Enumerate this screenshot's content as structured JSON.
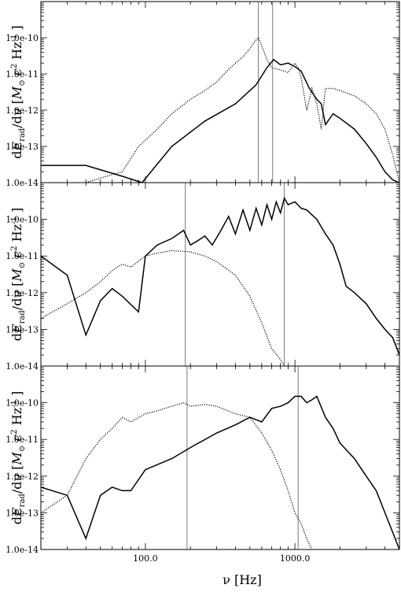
{
  "chart_data": [
    {
      "type": "line",
      "panel": "top",
      "xscale": "log",
      "yscale": "log",
      "xlim": [
        20,
        5000
      ],
      "ylim": [
        1e-14,
        1e-09
      ],
      "ylabel": "dE_rad/dν [M⊙ c² Hz⁻¹]",
      "yticks": [
        "1.0e-14",
        "1.0e-13",
        "1.0e-12",
        "1.0e-11",
        "1.0e-10"
      ],
      "vlines": [
        570,
        710
      ],
      "series": [
        {
          "style": "solid",
          "x": [
            20,
            40,
            70,
            95,
            150,
            250,
            400,
            550,
            650,
            720,
            800,
            900,
            1000,
            1100,
            1250,
            1400,
            1500,
            1600,
            1800,
            2000,
            2500,
            3000,
            3500,
            4000,
            4500,
            5000
          ],
          "y": [
            3e-14,
            3e-14,
            1.5e-14,
            1e-14,
            1e-13,
            5e-13,
            1.5e-12,
            5e-12,
            1.5e-11,
            2.5e-11,
            1.8e-11,
            2e-11,
            1.6e-11,
            1.2e-11,
            4e-12,
            2e-12,
            1.5e-12,
            4e-13,
            8e-13,
            6e-13,
            3e-13,
            1.2e-13,
            5e-14,
            2e-14,
            1.2e-14,
            1e-14
          ]
        },
        {
          "style": "dotted",
          "x": [
            40,
            55,
            70,
            90,
            120,
            150,
            200,
            250,
            300,
            350,
            400,
            450,
            500,
            540,
            570,
            600,
            650,
            700,
            800,
            900,
            1000,
            1050,
            1100,
            1200,
            1300,
            1400,
            1500,
            1600,
            1800,
            2000,
            2500,
            3000,
            3500,
            4000,
            4500,
            5000
          ],
          "y": [
            1e-14,
            1.5e-14,
            2e-14,
            1e-13,
            3e-13,
            8e-13,
            2e-12,
            3.5e-12,
            6e-12,
            1.2e-11,
            2e-11,
            3e-11,
            5e-11,
            8e-11,
            1e-10,
            6e-11,
            2.5e-11,
            1.5e-11,
            1.3e-11,
            1.1e-11,
            2e-11,
            1.5e-11,
            8e-12,
            1e-12,
            4e-12,
            1.5e-12,
            3e-13,
            4e-12,
            4e-12,
            3.5e-12,
            2.5e-12,
            1.5e-12,
            8e-13,
            3e-13,
            6e-14,
            1e-14
          ]
        }
      ]
    },
    {
      "type": "line",
      "panel": "middle",
      "xscale": "log",
      "yscale": "log",
      "xlim": [
        20,
        5000
      ],
      "ylim": [
        1e-14,
        1e-09
      ],
      "ylabel": "dE_rad/dν [M⊙ c² Hz⁻¹]",
      "yticks": [
        "1.0e-14",
        "1.0e-13",
        "1.0e-12",
        "1.0e-11",
        "1.0e-10"
      ],
      "vlines": [
        185,
        850
      ],
      "series": [
        {
          "style": "solid",
          "x": [
            20,
            30,
            40,
            50,
            60,
            70,
            90,
            100,
            120,
            150,
            180,
            200,
            220,
            250,
            280,
            320,
            360,
            400,
            450,
            500,
            550,
            600,
            650,
            700,
            750,
            800,
            850,
            900,
            1000,
            1100,
            1200,
            1400,
            1600,
            1800,
            2000,
            2200,
            2500,
            3000,
            3500,
            4000,
            4500,
            5000
          ],
          "y": [
            1e-11,
            3e-12,
            7e-14,
            6e-13,
            1.3e-12,
            8e-13,
            3e-13,
            1e-11,
            2e-11,
            3e-11,
            5e-11,
            2e-11,
            2.5e-11,
            3.5e-11,
            2e-11,
            5e-11,
            1.2e-10,
            4e-11,
            1.8e-10,
            5e-11,
            2e-10,
            7e-11,
            2.5e-10,
            1e-10,
            3e-10,
            1.5e-10,
            3.8e-10,
            2.5e-10,
            3e-10,
            2e-10,
            1.8e-10,
            1e-10,
            4e-11,
            2e-11,
            6e-12,
            1.5e-12,
            1e-12,
            5e-13,
            2e-13,
            1e-13,
            6e-14,
            2e-14
          ]
        },
        {
          "style": "dotted",
          "x": [
            20,
            30,
            40,
            50,
            60,
            70,
            80,
            100,
            120,
            150,
            200,
            250,
            300,
            400,
            500,
            600,
            700,
            800,
            850
          ],
          "y": [
            2e-13,
            5e-13,
            1e-12,
            2e-12,
            4e-12,
            6e-12,
            5e-12,
            1e-11,
            1.2e-11,
            1.4e-11,
            1.3e-11,
            1e-11,
            7e-12,
            3e-12,
            8e-13,
            1.5e-13,
            3e-14,
            1.5e-14,
            1e-14
          ]
        }
      ]
    },
    {
      "type": "line",
      "panel": "bottom",
      "xscale": "log",
      "yscale": "log",
      "xlim": [
        20,
        5000
      ],
      "ylim": [
        1e-14,
        1e-09
      ],
      "xticks": [
        "100.0",
        "1000.0"
      ],
      "xlabel": "ν [Hz]",
      "ylabel": "dE_rad/dν [M⊙ c² Hz⁻¹]",
      "yticks": [
        "1.0e-14",
        "1.0e-13",
        "1.0e-12",
        "1.0e-11",
        "1.0e-10"
      ],
      "vlines": [
        190,
        1050
      ],
      "series": [
        {
          "style": "solid",
          "x": [
            20,
            30,
            40,
            50,
            60,
            70,
            80,
            100,
            150,
            200,
            300,
            400,
            500,
            600,
            700,
            800,
            900,
            1000,
            1100,
            1200,
            1300,
            1400,
            1600,
            1800,
            2000,
            2500,
            3000,
            3500,
            4000,
            4500,
            5000
          ],
          "y": [
            5e-13,
            3e-13,
            2e-14,
            3e-13,
            5e-13,
            4e-13,
            4e-13,
            1.5e-12,
            3e-12,
            6e-12,
            1.5e-11,
            2.5e-11,
            4e-11,
            3e-11,
            7e-11,
            8e-11,
            1e-10,
            1.5e-10,
            1.5e-10,
            1e-10,
            1.2e-10,
            1.5e-10,
            4e-11,
            2e-11,
            8e-12,
            3e-12,
            1e-12,
            4e-13,
            1e-13,
            3e-14,
            1e-14
          ]
        },
        {
          "style": "dotted",
          "x": [
            20,
            30,
            40,
            50,
            60,
            70,
            80,
            100,
            120,
            150,
            180,
            200,
            250,
            300,
            400,
            500,
            600,
            700,
            800,
            900,
            1000,
            1100,
            1200,
            1300
          ],
          "y": [
            1e-13,
            3e-13,
            3e-12,
            1e-11,
            2e-11,
            4e-11,
            3e-11,
            5e-11,
            6e-11,
            8e-11,
            1e-10,
            8e-11,
            9e-11,
            8e-11,
            5e-11,
            4e-11,
            1.5e-11,
            5e-12,
            1.5e-12,
            4e-13,
            1e-13,
            5e-14,
            2e-14,
            1e-14
          ]
        }
      ]
    }
  ]
}
